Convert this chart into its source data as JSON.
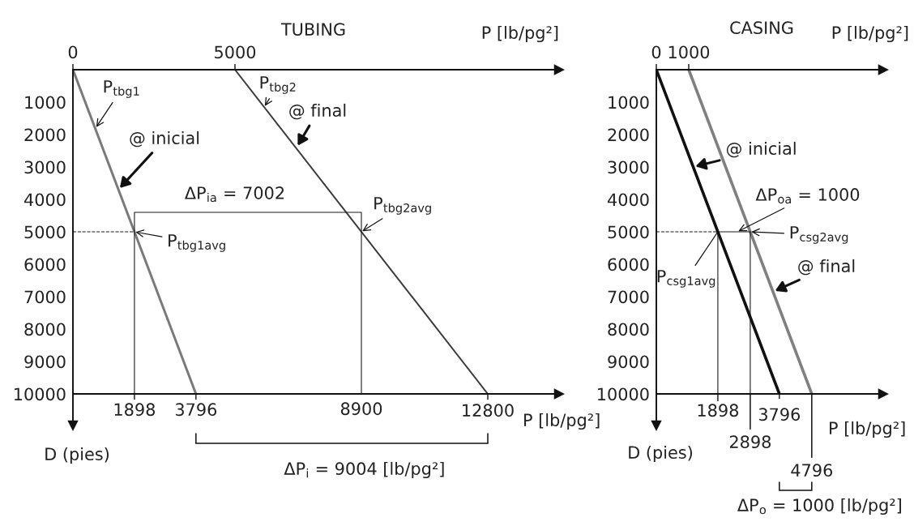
{
  "chart_data": [
    {
      "type": "line",
      "title": "TUBING",
      "xlabel": "P [lb/pg²]",
      "x2label": "P [lb/pg²]",
      "ylabel": "D (pies)",
      "xlim": [
        0,
        15000
      ],
      "xticks": [
        1898,
        3796,
        8900,
        12800
      ],
      "x2lim": [
        0,
        15000
      ],
      "x2ticks": [
        0,
        5000
      ],
      "ylim": [
        10000,
        0
      ],
      "yticks": [
        1000,
        2000,
        3000,
        4000,
        5000,
        6000,
        7000,
        8000,
        9000,
        10000
      ],
      "series": [
        {
          "color": "#7a7a7a",
          "x": [
            0,
            3796
          ],
          "values": [
            0,
            10000
          ]
        },
        {
          "color": "#3c3c3c",
          "x": [
            5000,
            12800
          ],
          "values": [
            0,
            10000
          ]
        },
        {
          "color": "#1a1a1a",
          "x": [
            0,
            1898
          ],
          "values": [
            5000,
            5000
          ],
          "line_style": "dashed"
        },
        {
          "color": "#1a1a1a",
          "x": [
            1898,
            1898,
            8900,
            8900
          ],
          "values": [
            10000,
            4400,
            4400,
            10000
          ]
        }
      ],
      "annotations": [
        {
          "text": "P$_{tbg1}$",
          "x": 700,
          "y": 1800
        },
        {
          "text": "@ inicial",
          "x": 1400,
          "y": 3700
        },
        {
          "text": "P$_{tbg2}$",
          "x": 5900,
          "y": 1150
        },
        {
          "text": "@ final",
          "x": 6900,
          "y": 2400
        },
        {
          "text": "ΔP$_{ia}$ = 7002",
          "x": 5400,
          "y": 4400
        },
        {
          "text": "P$_{tbg1avg}$",
          "x": 1898,
          "y": 5000
        },
        {
          "text": "P$_{tbg2avg}$",
          "x": 8900,
          "y": 5000
        },
        "ΔP$_{i}$ = 9004 [lb/pg²]"
      ]
    },
    {
      "type": "line",
      "title": "CASING",
      "xlabel": "P [lb/pg²]",
      "x2label": "P [lb/pg²]",
      "ylabel": "D (pies)",
      "xlim": [
        0,
        7000
      ],
      "xticks": [
        1898,
        3796
      ],
      "x2lim": [
        0,
        7000
      ],
      "x2ticks": [
        0,
        1000
      ],
      "ylim": [
        10000,
        0
      ],
      "yticks": [
        1000,
        2000,
        3000,
        4000,
        5000,
        6000,
        7000,
        8000,
        9000,
        10000
      ],
      "series": [
        {
          "color": "#111111",
          "x": [
            0,
            3796
          ],
          "values": [
            0,
            10000
          ]
        },
        {
          "color": "#808080",
          "x": [
            1000,
            4796
          ],
          "values": [
            0,
            10000
          ]
        },
        {
          "color": "#1a1a1a",
          "x": [
            0,
            1898
          ],
          "values": [
            5000,
            5000
          ],
          "line_style": "dashed"
        },
        {
          "color": "#1a1a1a",
          "x": [
            1898,
            2898
          ],
          "values": [
            5000,
            5000
          ]
        },
        {
          "color": "#1a1a1a",
          "x": [
            1898,
            1898
          ],
          "values": [
            5000,
            10000
          ]
        },
        {
          "color": "#1a1a1a",
          "x": [
            2898,
            2898
          ],
          "values": [
            5000,
            10000
          ]
        }
      ],
      "annotations": [
        {
          "text": "@ inicial",
          "x": 1140,
          "y": 3000
        },
        {
          "text": "ΔP$_{oa}$ = 1000",
          "x": 2500,
          "y": 5000
        },
        {
          "text": "P$_{csg2avg}$",
          "x": 2898,
          "y": 5000
        },
        {
          "text": "P$_{csg1avg}$",
          "x": 1898,
          "y": 5000
        },
        {
          "text": "@ final",
          "x": 3600,
          "y": 6850
        },
        {
          "text": "2898",
          "x": 2898,
          "y": 10000
        },
        {
          "text": "4796",
          "x": 4796,
          "y": 10000
        },
        "ΔP$_{o}$ = 1000 [lb/pg²]"
      ]
    }
  ]
}
